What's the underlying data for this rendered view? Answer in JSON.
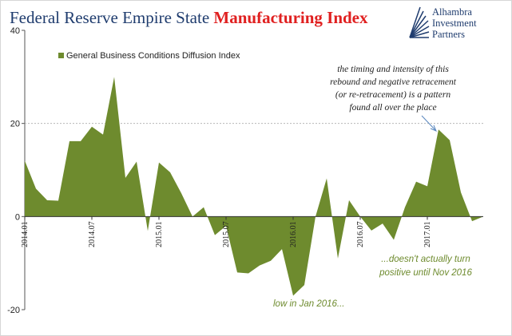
{
  "title": {
    "part1": "Federal Reserve Empire State ",
    "part2": "Manufacturing Index"
  },
  "logo": {
    "lines": [
      "Alhambra",
      "Investment",
      "Partners"
    ]
  },
  "colors": {
    "series": "#6e8b2e",
    "title_navy": "#1f3c6e",
    "title_red": "#e02020",
    "annotation_green": "#6e8b2e"
  },
  "annotations": {
    "pattern": [
      "the timing and intensity of this",
      "rebound and negative retracement",
      "(or re-retracement) is a pattern",
      "found all over the place"
    ],
    "nov2016": [
      "...doesn't actually turn",
      "positive until Nov 2016"
    ],
    "jan2016": "low in Jan 2016..."
  },
  "chart_data": {
    "type": "area",
    "title": "Federal Reserve Empire State Manufacturing Index",
    "legend": {
      "entries": [
        "General Business Conditions Diffusion Index"
      ],
      "placement": "top-left"
    },
    "grid": {
      "horizontal_dashed_at": [
        20
      ]
    },
    "ylim": [
      -20,
      40
    ],
    "yticks": [
      40,
      20,
      0,
      -20
    ],
    "xtick_labels": [
      "2014.01",
      "2014.07",
      "2015.01",
      "2015.07",
      "2016.01",
      "2016.07",
      "2017.01"
    ],
    "x": [
      "2014.01",
      "2014.02",
      "2014.03",
      "2014.04",
      "2014.05",
      "2014.06",
      "2014.07",
      "2014.08",
      "2014.09",
      "2014.10",
      "2014.11",
      "2014.12",
      "2015.01",
      "2015.02",
      "2015.03",
      "2015.04",
      "2015.05",
      "2015.06",
      "2015.07",
      "2015.08",
      "2015.09",
      "2015.10",
      "2015.11",
      "2015.12",
      "2016.01",
      "2016.02",
      "2016.03",
      "2016.04",
      "2016.05",
      "2016.06",
      "2016.07",
      "2016.08",
      "2016.09",
      "2016.10",
      "2016.11",
      "2016.12",
      "2017.01",
      "2017.02",
      "2017.03",
      "2017.04",
      "2017.05",
      "2017.06"
    ],
    "series": [
      {
        "name": "General Business Conditions Diffusion Index",
        "values": [
          12.0,
          6.0,
          3.5,
          3.4,
          16.2,
          16.2,
          19.3,
          17.6,
          30.0,
          8.3,
          11.8,
          -3.1,
          11.6,
          9.5,
          5.0,
          0.0,
          2.0,
          -4.0,
          -2.0,
          -12.0,
          -12.2,
          -10.5,
          -9.5,
          -7.0,
          -17.0,
          -14.7,
          0.0,
          8.2,
          -9.0,
          3.5,
          0.0,
          -3.0,
          -1.5,
          -5.0,
          2.0,
          7.5,
          6.5,
          18.7,
          16.4,
          5.2,
          -1.0,
          0.0
        ]
      }
    ]
  }
}
